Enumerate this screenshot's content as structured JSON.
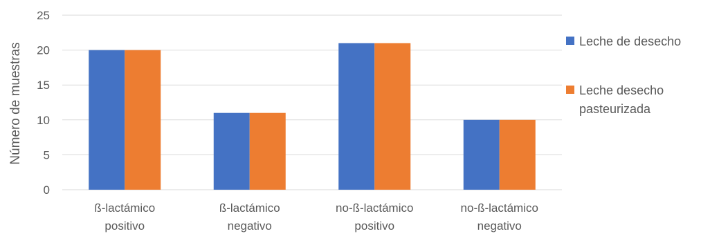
{
  "chart_data": {
    "type": "bar",
    "categories": [
      [
        "ß-lactámico",
        "positivo"
      ],
      [
        "ß-lactámico",
        "negativo"
      ],
      [
        "no-ß-lactámico",
        "positivo"
      ],
      [
        "no-ß-lactámico",
        "negativo"
      ]
    ],
    "series": [
      {
        "name": [
          "Leche de desecho"
        ],
        "values": [
          20,
          11,
          21,
          10
        ],
        "color": "#4472C4"
      },
      {
        "name": [
          "Leche desecho",
          "pasteurizada"
        ],
        "values": [
          20,
          11,
          21,
          10
        ],
        "color": "#ED7D31"
      }
    ],
    "title": "",
    "xlabel": "",
    "ylabel": "Número de muestras",
    "ylim": [
      0,
      25
    ],
    "yticks": [
      0,
      5,
      10,
      15,
      20,
      25
    ],
    "grid": true,
    "legend": "right",
    "gridColor": "#D9D9D9"
  }
}
